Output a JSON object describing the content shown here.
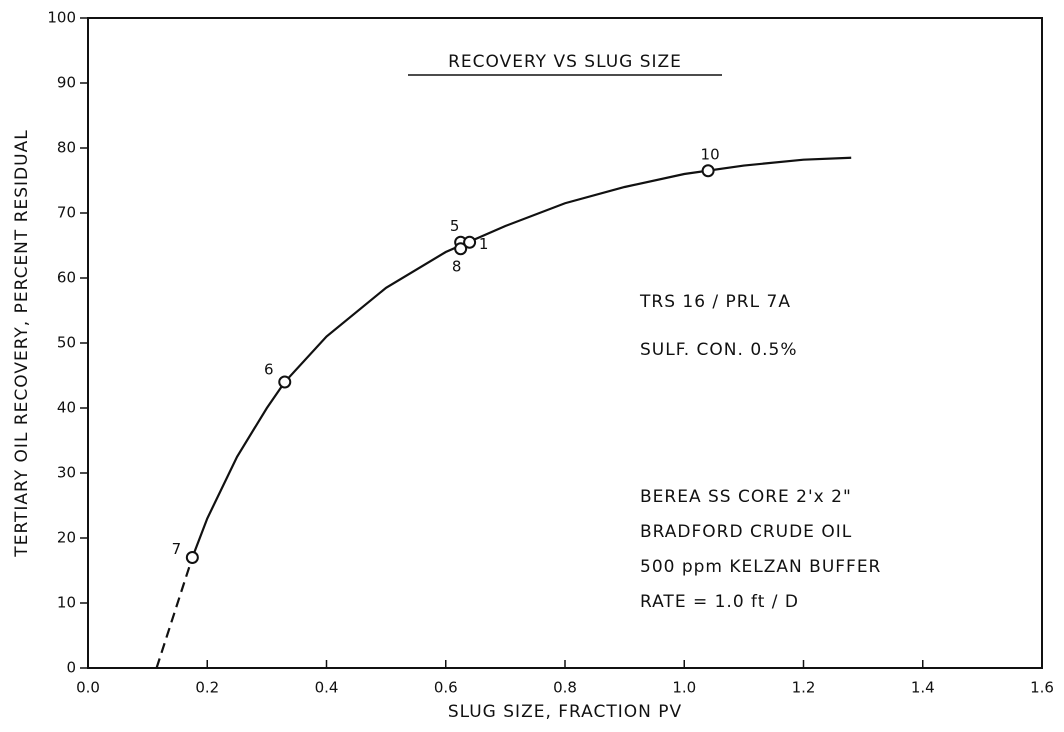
{
  "chart_data": {
    "type": "scatter",
    "title": "RECOVERY VS SLUG SIZE",
    "xlabel": "SLUG  SIZE,  FRACTION PV",
    "ylabel": "TERTIARY OIL RECOVERY, PERCENT RESIDUAL",
    "xlim": [
      0,
      1.6
    ],
    "ylim": [
      0,
      100
    ],
    "xticks": [
      {
        "value": 0,
        "label": "0.0"
      },
      0.2,
      0.4,
      0.6,
      0.8,
      {
        "value": 1,
        "label": "1.0"
      },
      1.2,
      1.4,
      1.6
    ],
    "yticks": [
      0,
      10,
      20,
      30,
      40,
      50,
      60,
      70,
      80,
      90,
      100
    ],
    "points": {
      "labels": [
        "7",
        "6",
        "5",
        "1",
        "8",
        "10"
      ],
      "x": [
        0.175,
        0.33,
        0.625,
        0.64,
        0.625,
        1.04
      ],
      "y": [
        17,
        44,
        65.5,
        65.5,
        64.5,
        76.5
      ]
    },
    "curve": {
      "x": [
        0.175,
        0.2,
        0.25,
        0.3,
        0.33,
        0.4,
        0.5,
        0.6,
        0.7,
        0.8,
        0.9,
        1.0,
        1.1,
        1.2,
        1.28
      ],
      "y": [
        17,
        23,
        32.5,
        40,
        44,
        51,
        58.5,
        64,
        68,
        71.5,
        74,
        76,
        77.3,
        78.2,
        78.5
      ]
    },
    "extrapolation": {
      "x": [
        0.115,
        0.175
      ],
      "y": [
        0,
        17
      ]
    },
    "annotations": [
      "TRS  16 / PRL  7A",
      "SULF.  CON.  0.5%",
      "BEREA  SS  CORE  2'x 2\"",
      "BRADFORD  CRUDE  OIL",
      "500 ppm  KELZAN  BUFFER",
      "RATE = 1.0 ft / D"
    ]
  }
}
